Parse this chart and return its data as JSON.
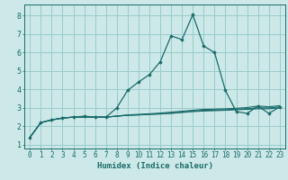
{
  "xlabel": "Humidex (Indice chaleur)",
  "background_color": "#cce8e8",
  "grid_color": "#99cccc",
  "line_color": "#1a6b6b",
  "xlim": [
    -0.5,
    23.5
  ],
  "ylim": [
    0.8,
    8.6
  ],
  "xticks": [
    0,
    1,
    2,
    3,
    4,
    5,
    6,
    7,
    8,
    9,
    10,
    11,
    12,
    13,
    14,
    15,
    16,
    17,
    18,
    19,
    20,
    21,
    22,
    23
  ],
  "yticks": [
    1,
    2,
    3,
    4,
    5,
    6,
    7,
    8
  ],
  "series": [
    [
      1.4,
      2.2,
      2.35,
      2.45,
      2.5,
      2.55,
      2.5,
      2.5,
      3.0,
      3.95,
      4.4,
      4.8,
      5.5,
      6.9,
      6.7,
      8.05,
      6.35,
      6.0,
      3.95,
      2.8,
      2.7,
      3.1,
      2.7,
      3.05
    ],
    [
      1.4,
      2.2,
      2.35,
      2.45,
      2.5,
      2.5,
      2.5,
      2.5,
      2.55,
      2.6,
      2.62,
      2.65,
      2.67,
      2.7,
      2.75,
      2.8,
      2.83,
      2.85,
      2.87,
      2.9,
      2.92,
      2.95,
      2.95,
      3.0
    ],
    [
      1.4,
      2.2,
      2.35,
      2.45,
      2.5,
      2.5,
      2.5,
      2.5,
      2.55,
      2.6,
      2.62,
      2.65,
      2.68,
      2.72,
      2.77,
      2.82,
      2.87,
      2.88,
      2.9,
      2.93,
      2.96,
      3.0,
      3.0,
      3.05
    ],
    [
      1.4,
      2.2,
      2.35,
      2.45,
      2.5,
      2.5,
      2.5,
      2.5,
      2.56,
      2.62,
      2.65,
      2.68,
      2.72,
      2.77,
      2.82,
      2.87,
      2.92,
      2.93,
      2.95,
      2.98,
      3.02,
      3.1,
      3.06,
      3.12
    ]
  ],
  "tick_fontsize": 5.5,
  "xlabel_fontsize": 6.5
}
